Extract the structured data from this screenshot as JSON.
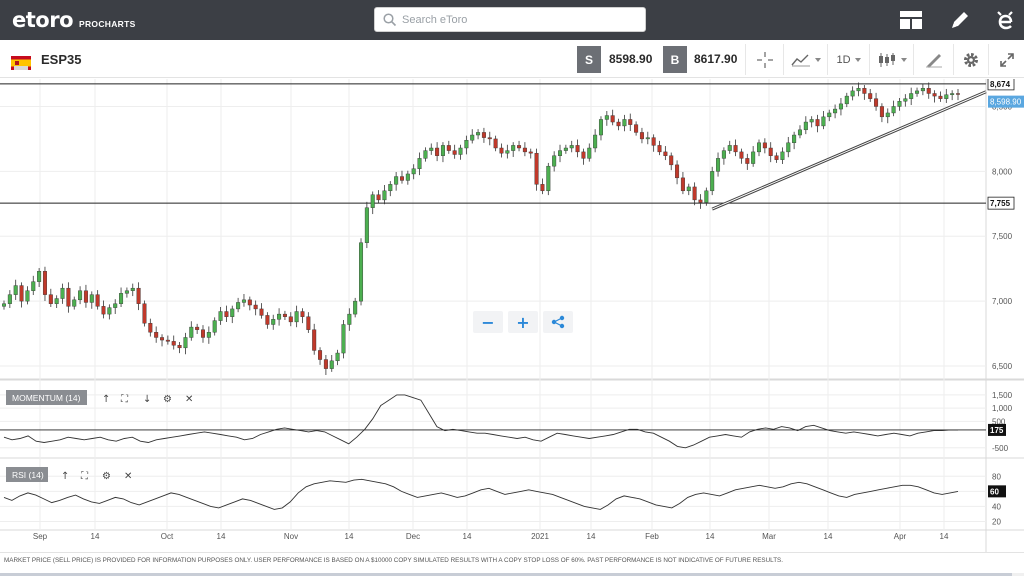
{
  "header": {
    "logo_text": "etoro",
    "logo_sub": "PROCHARTS",
    "search_placeholder": "Search eToro",
    "icons": [
      "layout-icon",
      "pencil-icon",
      "etoro-e-icon"
    ]
  },
  "instrument": {
    "symbol": "ESP35",
    "sell_label": "S",
    "sell_price": "8598.90",
    "buy_label": "B",
    "buy_price": "8617.90",
    "timeframe": "1D",
    "tools": [
      "crosshair-icon",
      "chart-type-icon",
      "timeframe-select",
      "candles-icon",
      "draw-tools-icon",
      "settings-icon",
      "fullscreen-icon"
    ]
  },
  "colors": {
    "up": "#4caf50",
    "down": "#c0392b",
    "price_tag": "#5aa7e0",
    "header": "#3c3f45",
    "accent": "#2b88d8"
  },
  "chart_data": [
    {
      "type": "candlestick",
      "name": "ESP35",
      "x_ticks": [
        "Sep",
        "14",
        "Oct",
        "14",
        "Nov",
        "14",
        "Dec",
        "14",
        "2021",
        "14",
        "Feb",
        "14",
        "Mar",
        "14",
        "Apr",
        "14"
      ],
      "y_ticks": [
        "8,500",
        "8,000",
        "7,500",
        "7,000",
        "6,500"
      ],
      "ylim": [
        6400,
        8650
      ],
      "closes": [
        6980,
        7050,
        7120,
        7000,
        7080,
        7150,
        7230,
        7050,
        6980,
        7020,
        7100,
        6960,
        7010,
        7080,
        6990,
        7050,
        6960,
        6900,
        6950,
        6980,
        7060,
        7080,
        7100,
        6980,
        6830,
        6760,
        6720,
        6700,
        6690,
        6660,
        6640,
        6720,
        6800,
        6780,
        6720,
        6760,
        6850,
        6920,
        6880,
        6940,
        6990,
        7010,
        6970,
        6940,
        6890,
        6820,
        6860,
        6900,
        6880,
        6840,
        6920,
        6880,
        6780,
        6620,
        6550,
        6480,
        6540,
        6600,
        6820,
        6900,
        7000,
        7450,
        7720,
        7820,
        7780,
        7850,
        7900,
        7960,
        7930,
        7980,
        8020,
        8100,
        8160,
        8180,
        8120,
        8200,
        8160,
        8130,
        8180,
        8240,
        8280,
        8300,
        8260,
        8250,
        8180,
        8140,
        8160,
        8200,
        8180,
        8150,
        8140,
        7900,
        7850,
        8040,
        8120,
        8160,
        8180,
        8200,
        8150,
        8100,
        8180,
        8280,
        8400,
        8430,
        8380,
        8350,
        8400,
        8360,
        8300,
        8250,
        8260,
        8200,
        8150,
        8120,
        8050,
        7950,
        7850,
        7880,
        7780,
        7760,
        7850,
        8000,
        8100,
        8160,
        8200,
        8150,
        8100,
        8060,
        8150,
        8220,
        8180,
        8120,
        8090,
        8150,
        8220,
        8280,
        8320,
        8380,
        8400,
        8350,
        8420,
        8450,
        8480,
        8520,
        8580,
        8620,
        8640,
        8600,
        8560,
        8500,
        8420,
        8450,
        8500,
        8540,
        8560,
        8600,
        8620,
        8640,
        8600,
        8580,
        8560,
        8590,
        8600,
        8598
      ],
      "hlines": [
        {
          "value": "8,674",
          "price": 8674
        },
        {
          "value": "7,755",
          "price": 7755
        }
      ],
      "last_price_label": "8,598.90",
      "last_price": 8598.9,
      "trendline": {
        "from_index": 121,
        "from_price": 7740,
        "to_index": 165,
        "to_price": 8598
      }
    },
    {
      "type": "line",
      "name": "MOMENTUM (14)",
      "y_ticks": [
        "1,500",
        "1,000",
        "500",
        "-500"
      ],
      "ylim": [
        -850,
        1800
      ],
      "current_label": "175",
      "current_value": 175,
      "values": [
        -100,
        -200,
        -150,
        -50,
        -250,
        -300,
        -250,
        -200,
        -100,
        -150,
        -200,
        -150,
        -100,
        -200,
        -250,
        -150,
        -100,
        -250,
        -300,
        -200,
        -150,
        -100,
        -50,
        0,
        50,
        100,
        50,
        0,
        -50,
        -100,
        -200,
        -150,
        0,
        100,
        200,
        250,
        200,
        150,
        100,
        150,
        100,
        -50,
        -200,
        -350,
        -100,
        200,
        600,
        1100,
        1300,
        1500,
        1500,
        1400,
        1300,
        800,
        300,
        150,
        200,
        150,
        100,
        50,
        50,
        0,
        -50,
        -100,
        -150,
        -100,
        -200,
        -250,
        -100,
        50,
        0,
        -50,
        -100,
        -150,
        -100,
        -50,
        0,
        100,
        200,
        200,
        100,
        50,
        -100,
        -250,
        -450,
        -500,
        -400,
        -250,
        -100,
        -50,
        0,
        -50,
        -100,
        100,
        200,
        250,
        200,
        300,
        250,
        150,
        300,
        350,
        250,
        150,
        100,
        50,
        100,
        50,
        0,
        -50,
        0,
        50,
        0,
        -50,
        50,
        100,
        150,
        150,
        175,
        175
      ]
    },
    {
      "type": "line",
      "name": "RSI (14)",
      "y_ticks": [
        "80",
        "60",
        "40",
        "20"
      ],
      "ylim": [
        10,
        95
      ],
      "current_label": "60",
      "current_value": 60,
      "values": [
        52,
        48,
        54,
        58,
        55,
        50,
        45,
        48,
        52,
        55,
        50,
        46,
        44,
        48,
        52,
        50,
        45,
        42,
        46,
        50,
        54,
        58,
        56,
        52,
        48,
        44,
        40,
        38,
        42,
        46,
        50,
        48,
        44,
        40,
        36,
        38,
        46,
        58,
        66,
        70,
        72,
        74,
        73,
        72,
        75,
        76,
        74,
        72,
        70,
        66,
        60,
        56,
        52,
        54,
        56,
        58,
        55,
        52,
        54,
        58,
        62,
        64,
        60,
        56,
        58,
        60,
        62,
        60,
        58,
        56,
        52,
        48,
        44,
        40,
        38,
        36,
        42,
        50,
        54,
        52,
        50,
        46,
        42,
        40,
        38,
        44,
        52,
        56,
        58,
        56,
        54,
        58,
        62,
        64,
        66,
        68,
        66,
        64,
        66,
        70,
        72,
        70,
        66,
        62,
        58,
        54,
        52,
        56,
        58,
        60,
        62,
        64,
        66,
        68,
        68,
        66,
        62,
        58,
        56,
        58,
        60
      ]
    }
  ],
  "panes": {
    "momentum_label": "MOMENTUM (14)",
    "rsi_label": "RSI (14)"
  },
  "controls": {
    "zoom_out": "−",
    "zoom_in": "+"
  },
  "footer": {
    "disclaimer": "MARKET PRICE (SELL PRICE) IS PROVIDED FOR INFORMATION PURPOSES ONLY. USER PERFORMANCE IS BASED ON A $10000 COPY SIMULATED RESULTS WITH A COPY STOP LOSS OF 60%. PAST PERFORMANCE IS NOT INDICATIVE OF FUTURE RESULTS."
  }
}
